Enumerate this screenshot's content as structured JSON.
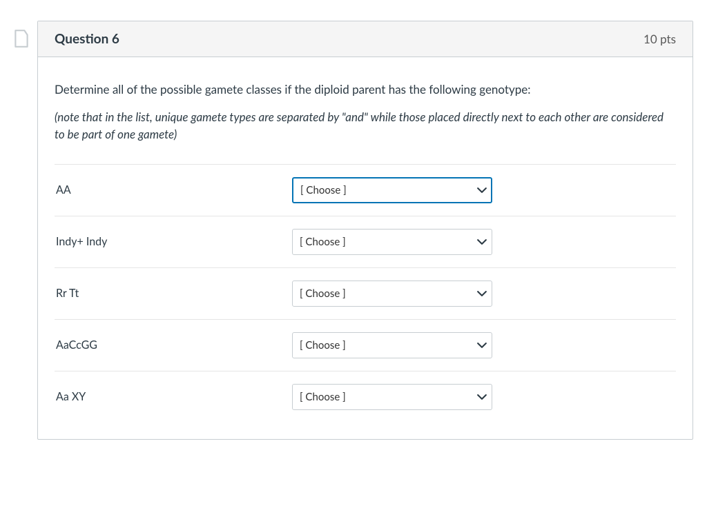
{
  "icon_color": "#c7cdd1",
  "header": {
    "title": "Question 6",
    "points": "10 pts"
  },
  "prompt": {
    "main": "Determine all of the possible gamete classes if the diploid parent has the following genotype:",
    "note": "(note that in the list, unique gamete types are separated by \"and\" while those placed directly next to each other are considered to be part of one gamete)"
  },
  "dropdown_placeholder": "[ Choose ]",
  "rows": [
    {
      "label": "AA",
      "focused": true
    },
    {
      "label": "Indy+ Indy",
      "focused": false
    },
    {
      "label": "Rr Tt",
      "focused": false
    },
    {
      "label": "AaCcGG",
      "focused": false
    },
    {
      "label": "Aa XY",
      "focused": false
    }
  ],
  "colors": {
    "card_border": "#c7cdd1",
    "header_bg": "#f5f5f5",
    "text": "#2d3b45",
    "points_text": "#595959",
    "row_border": "#e5e5e5",
    "select_border": "#c7cdd1",
    "focus_border": "#0374b5",
    "arrow": "#2d3b45"
  }
}
